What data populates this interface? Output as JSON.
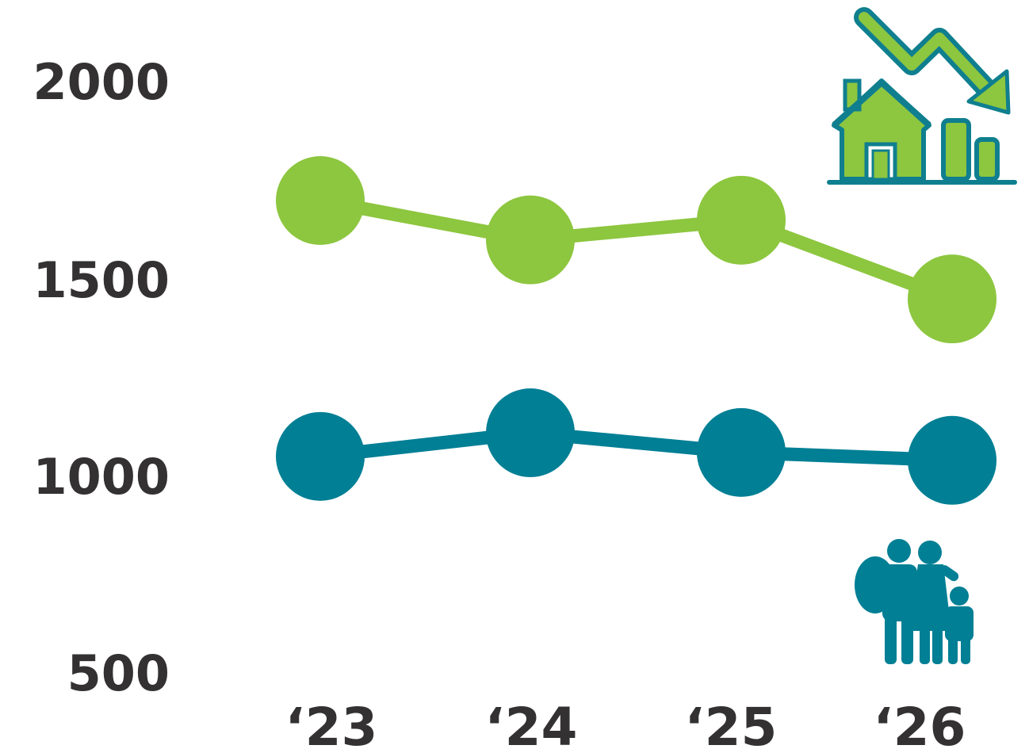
{
  "chart_data": {
    "type": "line",
    "categories": [
      "‘23",
      "‘24",
      "‘25",
      "‘26"
    ],
    "series": [
      {
        "values": [
          1700,
          1600,
          1650,
          1450
        ],
        "color": "#8dc63f"
      },
      {
        "values": [
          1050,
          1110,
          1060,
          1040
        ],
        "color": "#007f95"
      }
    ],
    "yticks": [
      "2000",
      "1500",
      "1000",
      "500"
    ],
    "ylim": [
      500,
      2000
    ],
    "grid": false,
    "legend": "none",
    "icons": [
      "house-price-decline-icon",
      "family-icon"
    ],
    "colors": {
      "green": "#8dc63f",
      "teal": "#007f95",
      "text": "#333132",
      "dark_teal": "#0f7f8f"
    }
  }
}
